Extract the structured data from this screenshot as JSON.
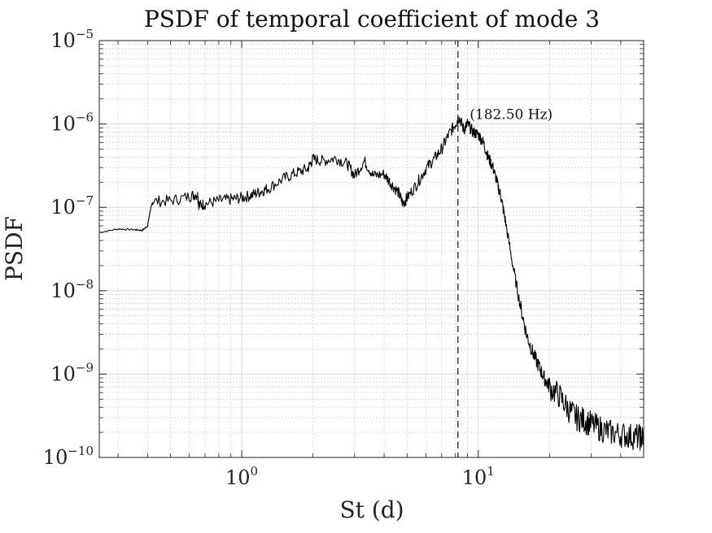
{
  "chart_data": {
    "type": "line",
    "title": "PSDF of temporal coefficient of mode 3",
    "xlabel": "St (d)",
    "ylabel": "PSDF",
    "xscale": "log",
    "yscale": "log",
    "xlim": [
      0.25,
      50
    ],
    "ylim": [
      1e-10,
      1e-05
    ],
    "grid": true,
    "minor_grid": true,
    "x_ticks": [
      {
        "value": 1,
        "base": "10",
        "exp": "0"
      },
      {
        "value": 10,
        "base": "10",
        "exp": "1"
      }
    ],
    "y_ticks": [
      {
        "value": 1e-10,
        "base": "10",
        "exp": "−10"
      },
      {
        "value": 1e-09,
        "base": "10",
        "exp": "−9"
      },
      {
        "value": 1e-08,
        "base": "10",
        "exp": "−8"
      },
      {
        "value": 1e-07,
        "base": "10",
        "exp": "−7"
      },
      {
        "value": 1e-06,
        "base": "10",
        "exp": "−6"
      },
      {
        "value": 1e-05,
        "base": "10",
        "exp": "−5"
      }
    ],
    "reference_line": {
      "x": 8.2,
      "style": "dashed"
    },
    "annotation": {
      "text": "(182.50 Hz)",
      "x": 9.2,
      "y": 1.15e-06
    },
    "series": [
      {
        "name": "PSDF",
        "x": [
          0.25,
          0.3,
          0.35,
          0.38,
          0.4,
          0.41,
          0.42,
          0.5,
          0.6,
          0.65,
          0.66,
          0.7,
          0.8,
          0.9,
          1.0,
          1.1,
          1.2,
          1.3,
          1.5,
          1.7,
          1.9,
          2.0,
          2.2,
          2.5,
          2.8,
          3.0,
          3.3,
          3.6,
          4.0,
          4.3,
          4.6,
          4.8,
          5.0,
          5.5,
          6.0,
          6.5,
          7.0,
          7.5,
          8.0,
          8.3,
          8.7,
          9.0,
          9.5,
          10.0,
          10.5,
          11.0,
          11.5,
          12.0,
          12.5,
          13.0,
          14.0,
          15.0,
          16.0,
          17.0,
          18.0,
          19.0,
          20.0,
          22.0,
          24.0,
          26.0,
          28.0,
          30.0,
          33.0,
          36.0,
          40.0,
          44.0,
          48.0,
          50.0
        ],
        "y": [
          5e-08,
          5.5e-08,
          5.4e-08,
          5.3e-08,
          6e-08,
          9e-08,
          1.18e-07,
          1.2e-07,
          1.35e-07,
          1.45e-07,
          1.05e-07,
          1.1e-07,
          1.2e-07,
          1.25e-07,
          1.3e-07,
          1.4e-07,
          1.55e-07,
          1.7e-07,
          2.2e-07,
          2.6e-07,
          2.9e-07,
          3.8e-07,
          3.6e-07,
          3.9e-07,
          3.3e-07,
          2.4e-07,
          3.6e-07,
          2.4e-07,
          2.5e-07,
          1.9e-07,
          1.5e-07,
          1.1e-07,
          1.3e-07,
          1.9e-07,
          2.9e-07,
          3.8e-07,
          5e-07,
          7.5e-07,
          1e-06,
          1.2e-06,
          8.5e-07,
          1e-06,
          8e-07,
          7.5e-07,
          6e-07,
          4e-07,
          3.1e-07,
          2e-07,
          1.3e-07,
          7e-08,
          2e-08,
          7e-09,
          3e-09,
          1.8e-09,
          1.25e-09,
          9e-10,
          7e-10,
          5.5e-10,
          3.8e-10,
          3e-10,
          2.8e-10,
          2.5e-10,
          2.2e-10,
          2e-10,
          1.9e-10,
          1.8e-10,
          1.75e-10,
          1.7e-10
        ],
        "color": "#000000"
      }
    ]
  }
}
